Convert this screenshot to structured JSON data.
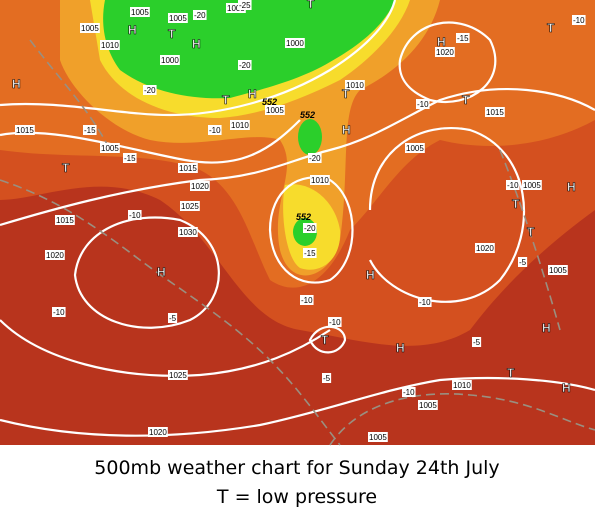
{
  "map": {
    "pressure_labels": [
      "1005",
      "1005",
      "1010",
      "1005",
      "1005",
      "1000",
      "1000",
      "1015",
      "1005",
      "1015",
      "1020",
      "1025",
      "1030",
      "1020",
      "1015",
      "1025",
      "1020",
      "1010",
      "1005",
      "1010",
      "1010",
      "1005",
      "1015",
      "1020",
      "1005",
      "1020",
      "1005",
      "1010",
      "1005",
      "1005"
    ],
    "centers": [
      "H",
      "H",
      "T",
      "T",
      "H",
      "T",
      "T",
      "H",
      "T",
      "H",
      "T",
      "H",
      "T",
      "H",
      "H",
      "T",
      "H",
      "T",
      "H",
      "H",
      "T",
      "T",
      "H"
    ],
    "temperature_labels": [
      "-25",
      "-20",
      "-20",
      "-20",
      "-15",
      "-15",
      "-10",
      "-20",
      "-20",
      "-15",
      "-10",
      "-10",
      "-10",
      "-5",
      "-10",
      "-15",
      "-10",
      "-10",
      "-5",
      "-5",
      "-10",
      "-5",
      "-10",
      "-10"
    ],
    "thickness_labels": [
      "552",
      "552",
      "552"
    ]
  },
  "caption": {
    "line1": "500mb weather chart for Sunday 24th July",
    "line2": "T = low pressure"
  }
}
